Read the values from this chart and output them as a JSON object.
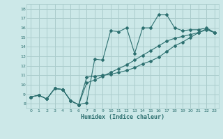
{
  "xlabel": "Humidex (Indice chaleur)",
  "bg_color": "#cce8e8",
  "grid_color": "#aacccc",
  "line_color": "#2d7070",
  "xlim": [
    -0.5,
    23.5
  ],
  "ylim": [
    7.5,
    18.5
  ],
  "xticks": [
    0,
    1,
    2,
    3,
    4,
    5,
    6,
    7,
    8,
    9,
    10,
    11,
    12,
    13,
    14,
    15,
    16,
    17,
    18,
    19,
    20,
    21,
    22,
    23
  ],
  "yticks": [
    8,
    9,
    10,
    11,
    12,
    13,
    14,
    15,
    16,
    17,
    18
  ],
  "line1_x": [
    0,
    1,
    2,
    3,
    4,
    5,
    6,
    7,
    8,
    9,
    10,
    11,
    12,
    13,
    14,
    15,
    16,
    17,
    18,
    19,
    20,
    21,
    22,
    23
  ],
  "line1_y": [
    8.7,
    8.9,
    8.5,
    9.6,
    9.5,
    8.3,
    7.9,
    8.1,
    12.7,
    12.6,
    15.7,
    15.6,
    16.0,
    13.3,
    16.0,
    16.0,
    17.4,
    17.4,
    16.0,
    15.7,
    15.8,
    15.8,
    16.0,
    15.5
  ],
  "line2_x": [
    0,
    1,
    2,
    3,
    4,
    5,
    6,
    7,
    8,
    9,
    10,
    11,
    12,
    13,
    14,
    15,
    16,
    17,
    18,
    19,
    20,
    21,
    22,
    23
  ],
  "line2_y": [
    8.7,
    8.9,
    8.5,
    9.6,
    9.5,
    8.3,
    7.9,
    10.8,
    10.9,
    11.0,
    11.1,
    11.3,
    11.5,
    11.8,
    12.2,
    12.5,
    12.9,
    13.5,
    14.1,
    14.5,
    15.0,
    15.5,
    15.9,
    15.5
  ],
  "line3_x": [
    0,
    1,
    2,
    3,
    4,
    5,
    6,
    7,
    8,
    9,
    10,
    11,
    12,
    13,
    14,
    15,
    16,
    17,
    18,
    19,
    20,
    21,
    22,
    23
  ],
  "line3_y": [
    8.7,
    8.9,
    8.5,
    9.6,
    9.5,
    8.3,
    7.9,
    10.2,
    10.5,
    10.9,
    11.3,
    11.7,
    12.1,
    12.6,
    13.1,
    13.6,
    14.1,
    14.6,
    14.9,
    15.1,
    15.3,
    15.5,
    15.8,
    15.5
  ]
}
